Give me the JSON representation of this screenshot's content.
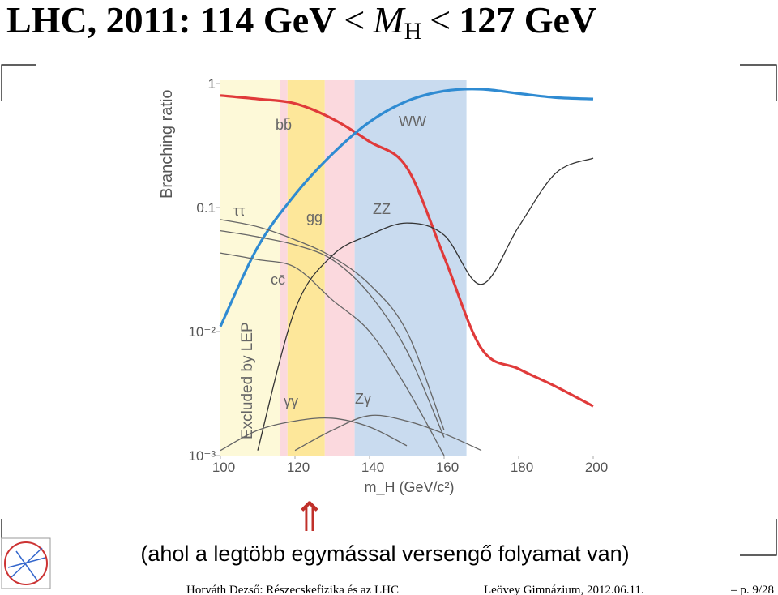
{
  "slide": {
    "title": [
      "LHC, 2011: 114 GeV",
      "<",
      "M",
      "H",
      "<",
      "127 GeV"
    ],
    "caption": "(ahol a legtöbb egymással versengő folyamat van)",
    "footer": [
      "Horváth Dezső: Részecskefizika és az LHC",
      "Leövey Gimnázium, 2012.06.11.",
      "– p. 9/28"
    ]
  },
  "chart_data": {
    "type": "line",
    "ylabel": "Branching ratio",
    "xlabel": "m_H (GeV/c²)",
    "log_y": true,
    "x": [
      100,
      110,
      120,
      130,
      140,
      150,
      160,
      170,
      180,
      190,
      200
    ],
    "xlim": [
      100,
      200
    ],
    "xticks": [
      100,
      120,
      140,
      160,
      180,
      200
    ],
    "ylim": [
      0.001,
      1
    ],
    "yticks": [
      {
        "value": 0.001,
        "label": "10⁻³"
      },
      {
        "value": 0.01,
        "label": "10⁻²"
      },
      0.1,
      1
    ],
    "bands": [
      {
        "x": [
          100,
          116
        ],
        "color": "#fdf9d8"
      },
      {
        "x": [
          116,
          118
        ],
        "color": "#fbd9de"
      },
      {
        "x": [
          118,
          128
        ],
        "color": "#fde79a"
      },
      {
        "x": [
          128,
          136
        ],
        "color": "#fbd9de"
      },
      {
        "x": [
          136,
          166
        ],
        "color": "#c9dbef"
      }
    ],
    "band_label": "Excluded by LEP",
    "series": [
      {
        "name": "bb̄",
        "color": "#e03a3a",
        "values": [
          0.8,
          0.75,
          0.69,
          0.52,
          0.34,
          0.21,
          0.04,
          0.0073,
          0.005,
          0.0036,
          0.0025
        ]
      },
      {
        "name": "WW",
        "color": "#2f8bd2",
        "values": [
          0.011,
          0.048,
          0.127,
          0.27,
          0.49,
          0.72,
          0.87,
          0.9,
          0.83,
          0.77,
          0.75
        ]
      },
      {
        "name": "ττ",
        "color": "#666666",
        "values": [
          0.065,
          0.058,
          0.05,
          0.038,
          0.02,
          0.007,
          0.0014,
          null,
          null,
          null,
          null
        ]
      },
      {
        "name": "gg",
        "color": "#666666",
        "values": [
          0.08,
          0.07,
          0.055,
          0.04,
          0.024,
          0.01,
          0.0016,
          null,
          null,
          null,
          null
        ]
      },
      {
        "name": "cc̄",
        "color": "#666666",
        "values": [
          0.043,
          0.038,
          0.033,
          0.018,
          0.01,
          0.0035,
          0.001,
          null,
          null,
          null,
          null
        ]
      },
      {
        "name": "ZZ",
        "color": "#333333",
        "values": [
          null,
          0.0011,
          0.015,
          0.041,
          0.06,
          0.075,
          0.06,
          0.024,
          0.07,
          0.19,
          0.25
        ]
      },
      {
        "name": "γγ",
        "color": "#666666",
        "values": [
          0.0011,
          0.0016,
          0.0019,
          0.002,
          0.0017,
          0.0012,
          null,
          null,
          null,
          null,
          null
        ]
      },
      {
        "name": "Zγ",
        "color": "#666666",
        "values": [
          null,
          null,
          0.0011,
          0.0016,
          0.0021,
          0.0019,
          0.0015,
          0.0011,
          null,
          null,
          null
        ]
      }
    ]
  }
}
